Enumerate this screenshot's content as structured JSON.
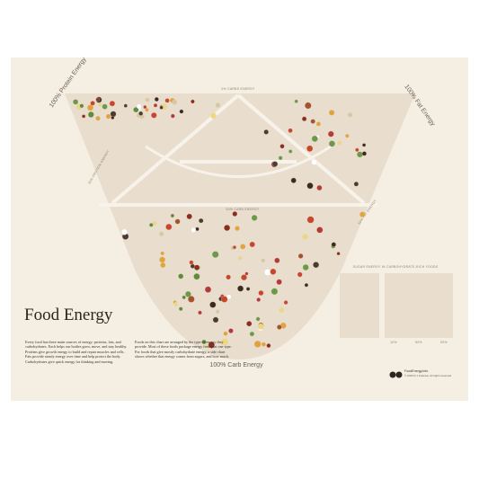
{
  "poster": {
    "title": "Food Energy",
    "corners": {
      "protein": "100% Protein Energy",
      "fat": "100% Fat Energy",
      "carb": "100% Carb Energy"
    },
    "scale_labels": {
      "top": "0% CARBS ENERGY",
      "middle": "50% CARB ENERGY",
      "left": "50% PROTEIN ENERGY",
      "right": "50% FAT ENERGY"
    },
    "paragraphs": [
      "Every food has three main sources of energy: proteins, fats, and carbohydrates. Each helps our bodies grow, move, and stay healthy. Proteins give growth energy to build and repair muscles and cells. Fats provide steady energy over time and help protect the body. Carbohydrates give quick energy for thinking and moving.",
      "Foods on this chart are arranged by the type of energy they provide. Most of these foods package energy from just one type. For foods that give mostly carbohydrate energy, a side chart shows whether that energy comes from sugars, and how much."
    ],
    "inset": {
      "title": "SUGAR ENERGY IN CARBOHYDRATE-RICH FOODS",
      "axis": [
        "10%",
        "50%",
        "90%"
      ]
    },
    "footer": {
      "site": "FoodEnergy.Info",
      "credit": "© 2020 R J Fedewa. All rights reserved"
    }
  }
}
